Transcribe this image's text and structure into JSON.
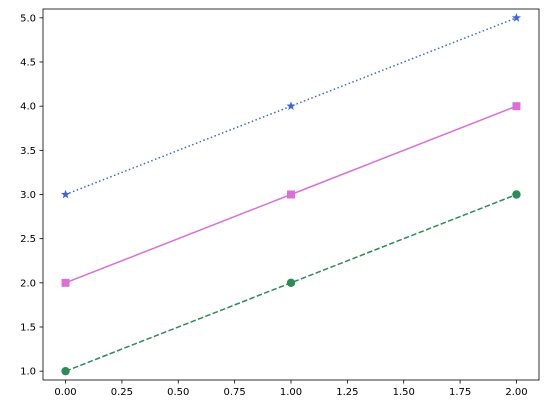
{
  "chart_data": {
    "type": "line",
    "title": "",
    "xlabel": "",
    "ylabel": "",
    "x": [
      0,
      1,
      2
    ],
    "xlim": [
      -0.1,
      2.1
    ],
    "ylim": [
      0.9,
      5.1
    ],
    "xticks": [
      "0.00",
      "0.25",
      "0.50",
      "0.75",
      "1.00",
      "1.25",
      "1.50",
      "1.75",
      "2.00"
    ],
    "yticks": [
      "1.0",
      "1.5",
      "2.0",
      "2.5",
      "3.0",
      "3.5",
      "4.0",
      "4.5",
      "5.0"
    ],
    "grid": false,
    "legend": "none",
    "series": [
      {
        "values": [
          3,
          4,
          5
        ],
        "color": "#3f66d6",
        "linestyle": "dotted",
        "marker": "star"
      },
      {
        "values": [
          2,
          3,
          4
        ],
        "color": "#da70d6",
        "linestyle": "solid",
        "marker": "square"
      },
      {
        "values": [
          1,
          2,
          3
        ],
        "color": "#2e8b57",
        "linestyle": "dashed",
        "marker": "circle"
      }
    ]
  }
}
